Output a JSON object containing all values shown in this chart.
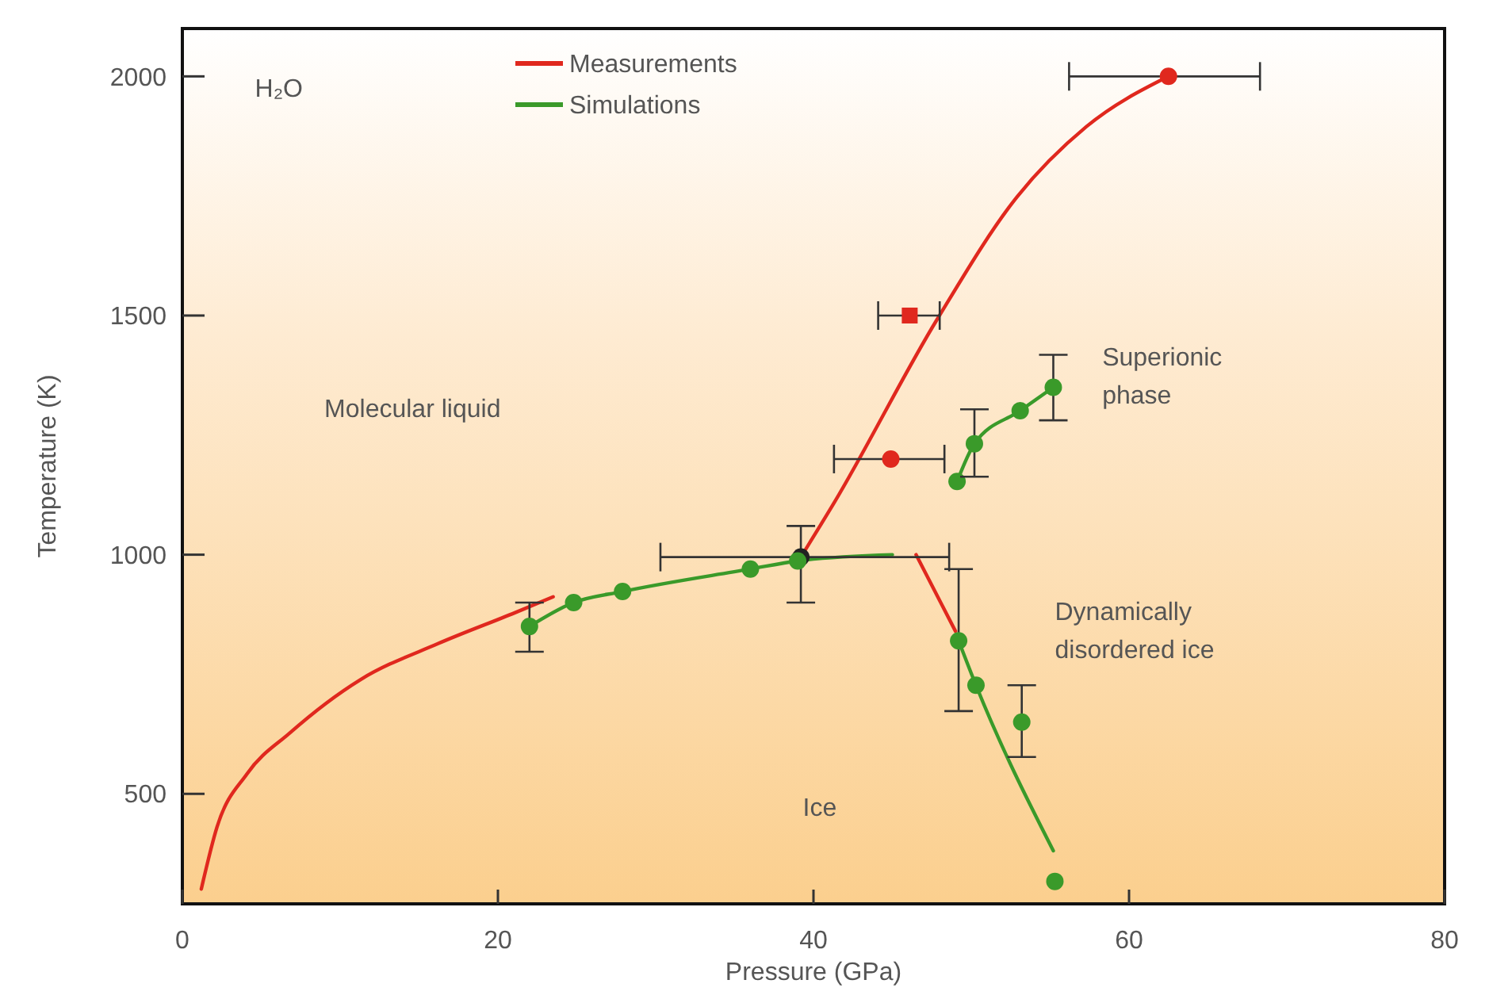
{
  "chart_data": {
    "type": "scatter",
    "xlabel": "Pressure (GPa)",
    "ylabel": "Temperature (K)",
    "xlim": [
      0,
      80
    ],
    "xticks": [
      0,
      20,
      40,
      60,
      80
    ],
    "ylim": [
      270,
      2100
    ],
    "yticks": [
      500,
      1000,
      1500,
      2000
    ],
    "grid": false,
    "legend": "top left",
    "annotations": [
      "H₂O",
      "Molecular liquid",
      "Superionic phase",
      "Dynamically disordered ice",
      "Ice"
    ],
    "series": [
      {
        "type": "line",
        "name": "Measurements",
        "color": "#e0281e",
        "marker": "none",
        "x": [
          1.2,
          2.2,
          4.1,
          6.8,
          11.3,
          16.2,
          21.1,
          23.5,
          null,
          39.2,
          41.3,
          47.8,
          52.9,
          57.3,
          62.5,
          null,
          46.5,
          49.0
        ],
        "values": [
          301,
          431,
          542,
          627,
          739,
          814,
          879,
          912,
          null,
          995,
          1108,
          1490,
          1748,
          1895,
          2000,
          null,
          1000,
          840
        ]
      },
      {
        "type": "line",
        "name": "Simulations",
        "color": "#3a9a2a",
        "marker": "none",
        "x": [
          22.0,
          24.8,
          27.9,
          36.0,
          39.0,
          45.0,
          null,
          49.2,
          50.3,
          55.2,
          null,
          49.1,
          50.2,
          53.1,
          55.2
        ],
        "values": [
          850,
          900,
          923,
          970,
          987,
          1000,
          null,
          820,
          727,
          381,
          null,
          1153,
          1232,
          1301,
          1350
        ]
      },
      {
        "color": "#e0281e",
        "marker": "circle",
        "x": [
          62.5,
          44.9
        ],
        "values": [
          2000,
          1200
        ],
        "xerrors": [
          [
            56.2,
            68.3
          ],
          [
            41.3,
            48.3
          ]
        ]
      },
      {
        "color": "#e0281e",
        "marker": "square",
        "x": [
          46.1
        ],
        "values": [
          1500
        ],
        "xerrors": [
          [
            44.1,
            48.0
          ]
        ]
      },
      {
        "color": "#222222",
        "marker": "circle",
        "x": [
          39.2
        ],
        "values": [
          995
        ],
        "xerrors": [
          [
            30.3,
            48.6
          ]
        ],
        "errors": [
          [
            900,
            1060
          ]
        ]
      },
      {
        "color": "#3a9a2a",
        "marker": "circle",
        "x": [
          22.0,
          24.8,
          27.9,
          36.0,
          39.0,
          49.2,
          50.3,
          53.2,
          55.3,
          49.1,
          50.2,
          53.1,
          55.2
        ],
        "values": [
          850,
          900,
          923,
          970,
          987,
          820,
          727,
          650,
          317,
          1153,
          1232,
          1301,
          1350
        ],
        "errors": [
          [
            797,
            900
          ],
          null,
          null,
          null,
          null,
          [
            673,
            970
          ],
          null,
          [
            577,
            727
          ],
          null,
          null,
          [
            1163,
            1304
          ],
          null,
          [
            1281,
            1418
          ]
        ]
      }
    ]
  }
}
